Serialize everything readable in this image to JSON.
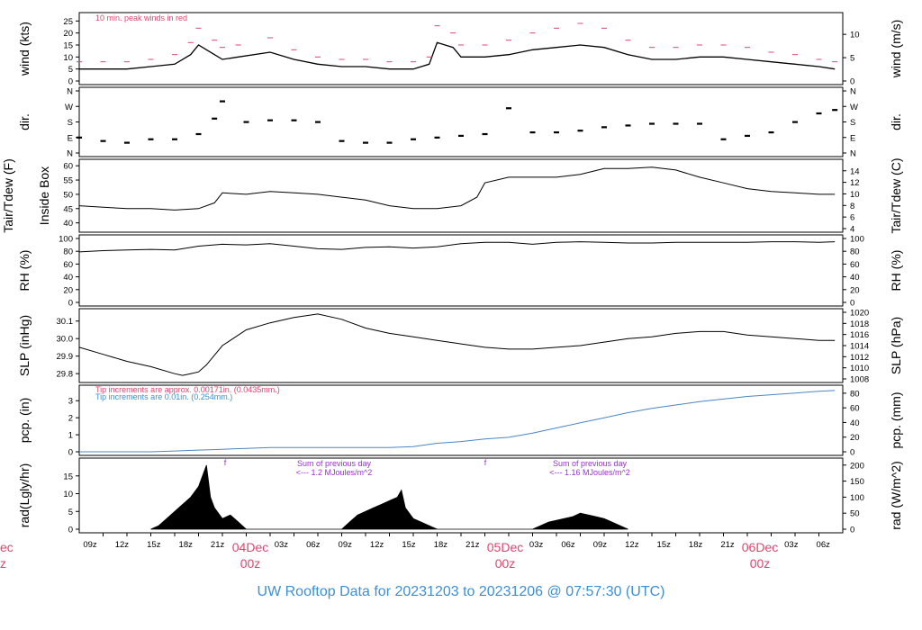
{
  "colors": {
    "frame": "#000000",
    "peak": "#e0446e",
    "precip_line": "#4a86c5",
    "precip_note_red": "#e0446e",
    "precip_note_blue": "#3d8fd6",
    "rad_note": "#9a2fd6",
    "day_label": "#e0446e",
    "footer": "#3d8fd6"
  },
  "footer": {
    "title": "UW Rooftop Data for 20231203  to  20231206 @ 07:57:30  (UTC)"
  },
  "time_axis": {
    "tick_labels": [
      "09z",
      "12z",
      "15z",
      "18z",
      "21z",
      "03z",
      "06z",
      "09z",
      "12z",
      "15z",
      "18z",
      "21z",
      "03z",
      "06z",
      "09z",
      "12z",
      "15z",
      "18z",
      "21z",
      "03z",
      "06z"
    ],
    "day_labels": [
      {
        "date": "04Dec",
        "hour": "00z"
      },
      {
        "date": "05Dec",
        "hour": "00z"
      },
      {
        "date": "06Dec",
        "hour": "00z"
      }
    ],
    "cut_label_left": {
      "date": "ec",
      "hour": "z"
    }
  },
  "chart_data": [
    {
      "type": "line",
      "id": "wind",
      "ylabel": "wind (kts)",
      "ylabel_right": "wind (m/s)",
      "yticks": [
        "0",
        "5",
        "10",
        "15",
        "20",
        "25"
      ],
      "yticks_right": [
        "0",
        "5",
        "10"
      ],
      "ylim": [
        0,
        27
      ],
      "annotation": "10 min. peak winds in red",
      "series": [
        {
          "name": "wind",
          "x_hours": [
            0,
            3,
            6,
            9,
            12,
            14,
            15,
            17,
            18,
            20,
            24,
            27,
            30,
            33,
            36,
            39,
            42,
            44,
            45,
            47,
            48,
            51,
            54,
            57,
            60,
            63,
            66,
            69,
            72,
            75,
            78,
            81,
            84,
            87,
            90,
            93,
            95
          ],
          "values": [
            5,
            5,
            5,
            6,
            7,
            11,
            15,
            11,
            9,
            10,
            12,
            9,
            7,
            6,
            6,
            5,
            5,
            7,
            16,
            14,
            10,
            10,
            11,
            13,
            14,
            15,
            14,
            11,
            9,
            9,
            10,
            10,
            9,
            8,
            7,
            6,
            5
          ]
        },
        {
          "name": "peak",
          "x_hours": [
            0,
            3,
            6,
            9,
            12,
            14,
            15,
            17,
            18,
            20,
            24,
            27,
            30,
            33,
            36,
            39,
            42,
            44,
            45,
            47,
            48,
            51,
            54,
            57,
            60,
            63,
            66,
            69,
            72,
            75,
            78,
            81,
            84,
            87,
            90,
            93,
            95
          ],
          "values": [
            8,
            8,
            8,
            9,
            11,
            16,
            22,
            17,
            14,
            15,
            18,
            13,
            10,
            9,
            9,
            8,
            8,
            10,
            23,
            20,
            15,
            15,
            17,
            20,
            22,
            24,
            22,
            17,
            14,
            14,
            15,
            15,
            14,
            12,
            11,
            9,
            8
          ]
        }
      ]
    },
    {
      "type": "scatter",
      "id": "dir",
      "ylabel": "dir.",
      "ylabel_right": "dir.",
      "yticks": [
        "N",
        "E",
        "S",
        "W",
        "N"
      ],
      "yticks_right": [
        "N",
        "E",
        "S",
        "W",
        "N"
      ],
      "ylim": [
        0,
        360
      ],
      "series": [
        {
          "name": "direction",
          "x_hours": [
            0,
            3,
            6,
            9,
            12,
            15,
            17,
            18,
            21,
            24,
            27,
            30,
            33,
            36,
            39,
            42,
            45,
            48,
            51,
            54,
            57,
            60,
            63,
            66,
            69,
            72,
            75,
            78,
            81,
            84,
            87,
            90,
            93,
            95
          ],
          "values": [
            90,
            70,
            60,
            80,
            80,
            110,
            200,
            300,
            180,
            190,
            190,
            180,
            70,
            60,
            60,
            80,
            90,
            100,
            110,
            260,
            120,
            120,
            130,
            150,
            160,
            170,
            170,
            170,
            80,
            100,
            120,
            180,
            230,
            250
          ]
        }
      ]
    },
    {
      "type": "line",
      "id": "temp",
      "ylabel": "Tair/Tdew (F)",
      "ylabel_inner": "Inside Box",
      "ylabel_right": "Tair/Tdew (C)",
      "yticks": [
        "40",
        "45",
        "50",
        "55",
        "60"
      ],
      "yticks_right": [
        "4",
        "6",
        "8",
        "10",
        "12",
        "14"
      ],
      "ylim": [
        38,
        61
      ],
      "series": [
        {
          "name": "inside box",
          "x_hours": [
            0,
            3,
            6,
            9,
            12,
            15,
            17,
            18,
            21,
            24,
            27,
            30,
            33,
            36,
            39,
            42,
            45,
            48,
            50,
            51,
            54,
            57,
            60,
            63,
            66,
            69,
            72,
            75,
            78,
            81,
            84,
            87,
            90,
            93,
            95
          ],
          "values": [
            46,
            45.5,
            45,
            45,
            44.5,
            45,
            47,
            50.5,
            50,
            51,
            50.5,
            50,
            49,
            48,
            46,
            45,
            45,
            46,
            49,
            54,
            56,
            56,
            56,
            57,
            59,
            59,
            59.5,
            58.5,
            56,
            54,
            52,
            51,
            50.5,
            50,
            50
          ]
        }
      ]
    },
    {
      "type": "line",
      "id": "rh",
      "ylabel": "RH (%)",
      "ylabel_right": "RH (%)",
      "yticks": [
        "0",
        "20",
        "40",
        "60",
        "80",
        "100"
      ],
      "yticks_right": [
        "0",
        "20",
        "40",
        "60",
        "80",
        "100"
      ],
      "ylim": [
        0,
        100
      ],
      "series": [
        {
          "name": "rh",
          "x_hours": [
            0,
            3,
            6,
            9,
            12,
            15,
            18,
            21,
            24,
            27,
            30,
            33,
            36,
            39,
            42,
            45,
            48,
            51,
            54,
            57,
            60,
            63,
            66,
            69,
            72,
            75,
            78,
            81,
            84,
            87,
            90,
            93,
            95
          ],
          "values": [
            79,
            81,
            82,
            83,
            82,
            88,
            91,
            90,
            92,
            88,
            84,
            83,
            86,
            87,
            85,
            87,
            92,
            94,
            94,
            91,
            94,
            95,
            94,
            93,
            93,
            94,
            94,
            94,
            94,
            95,
            95,
            94,
            95
          ]
        }
      ]
    },
    {
      "type": "line",
      "id": "slp",
      "ylabel": "SLP (inHg)",
      "ylabel_right": "SLP (hPa)",
      "yticks": [
        "29.8",
        "29.9",
        "30.0",
        "30.1"
      ],
      "yticks_right": [
        "1008",
        "1010",
        "1012",
        "1014",
        "1016",
        "1018",
        "1020"
      ],
      "ylim": [
        29.77,
        30.15
      ],
      "series": [
        {
          "name": "slp",
          "x_hours": [
            0,
            3,
            6,
            9,
            12,
            13,
            14,
            15,
            16,
            18,
            21,
            24,
            27,
            30,
            33,
            36,
            39,
            42,
            45,
            48,
            51,
            54,
            57,
            60,
            63,
            66,
            69,
            72,
            75,
            78,
            81,
            84,
            87,
            90,
            93,
            95
          ],
          "values": [
            29.95,
            29.91,
            29.87,
            29.84,
            29.8,
            29.79,
            29.8,
            29.81,
            29.85,
            29.96,
            30.05,
            30.09,
            30.12,
            30.14,
            30.11,
            30.06,
            30.03,
            30.01,
            29.99,
            29.97,
            29.95,
            29.94,
            29.94,
            29.95,
            29.96,
            29.98,
            30.0,
            30.01,
            30.03,
            30.04,
            30.04,
            30.02,
            30.01,
            30.0,
            29.99,
            29.99
          ]
        }
      ]
    },
    {
      "type": "line",
      "id": "pcp",
      "ylabel": "pcp. (in)",
      "ylabel_right": "pcp. (mm)",
      "yticks": [
        "0",
        "1",
        "2",
        "3"
      ],
      "yticks_right": [
        "0",
        "20",
        "40",
        "60",
        "80"
      ],
      "ylim": [
        0,
        3.7
      ],
      "annotation_red": "Tip increments are approx. 0.00171in. (0.0435mm.)",
      "annotation_blue": "Tip increments are 0.01in. (0.254mm.)",
      "series": [
        {
          "name": "precip",
          "x_hours": [
            0,
            6,
            9,
            12,
            15,
            18,
            21,
            24,
            27,
            33,
            39,
            42,
            45,
            48,
            51,
            54,
            57,
            60,
            63,
            66,
            69,
            72,
            75,
            78,
            81,
            84,
            87,
            90,
            93,
            95
          ],
          "values": [
            0,
            0,
            0,
            0.05,
            0.1,
            0.15,
            0.2,
            0.25,
            0.25,
            0.25,
            0.25,
            0.3,
            0.5,
            0.6,
            0.75,
            0.85,
            1.1,
            1.4,
            1.7,
            2.0,
            2.3,
            2.55,
            2.75,
            2.95,
            3.1,
            3.25,
            3.35,
            3.45,
            3.55,
            3.6
          ]
        }
      ]
    },
    {
      "type": "area",
      "id": "rad",
      "ylabel": "rad(Lgly/hr)",
      "ylabel_right": "rad (W/m^2)",
      "yticks": [
        "0",
        "5",
        "10",
        "15"
      ],
      "yticks_right": [
        "0",
        "50",
        "100",
        "150",
        "200"
      ],
      "ylim": [
        0,
        19
      ],
      "annotations": [
        {
          "text1": "Sum of previous day",
          "text2": "<--- 1.2 MJoules/m^2"
        },
        {
          "text1": "Sum of previous day",
          "text2": "<--- 1.16 MJoules/m^2"
        }
      ],
      "series": [
        {
          "name": "radiation",
          "x_hours": [
            9,
            10,
            11,
            12,
            13,
            14,
            15,
            16,
            16.5,
            17,
            18,
            19,
            20,
            21,
            33,
            34,
            35,
            36,
            37,
            38,
            39,
            40,
            40.5,
            41,
            42,
            43,
            44,
            45,
            57,
            58,
            59,
            60,
            61,
            62,
            63,
            64,
            65,
            66,
            67,
            68,
            69
          ],
          "values": [
            0,
            1,
            3,
            5,
            7,
            9,
            12,
            18,
            9,
            6,
            3,
            4,
            2,
            0,
            0,
            2,
            4,
            5,
            6,
            7,
            8,
            9,
            11,
            6,
            3,
            2,
            1,
            0,
            0,
            1,
            2,
            2.5,
            3,
            3.5,
            4.5,
            4,
            3.5,
            3,
            2,
            1,
            0
          ]
        }
      ]
    }
  ]
}
